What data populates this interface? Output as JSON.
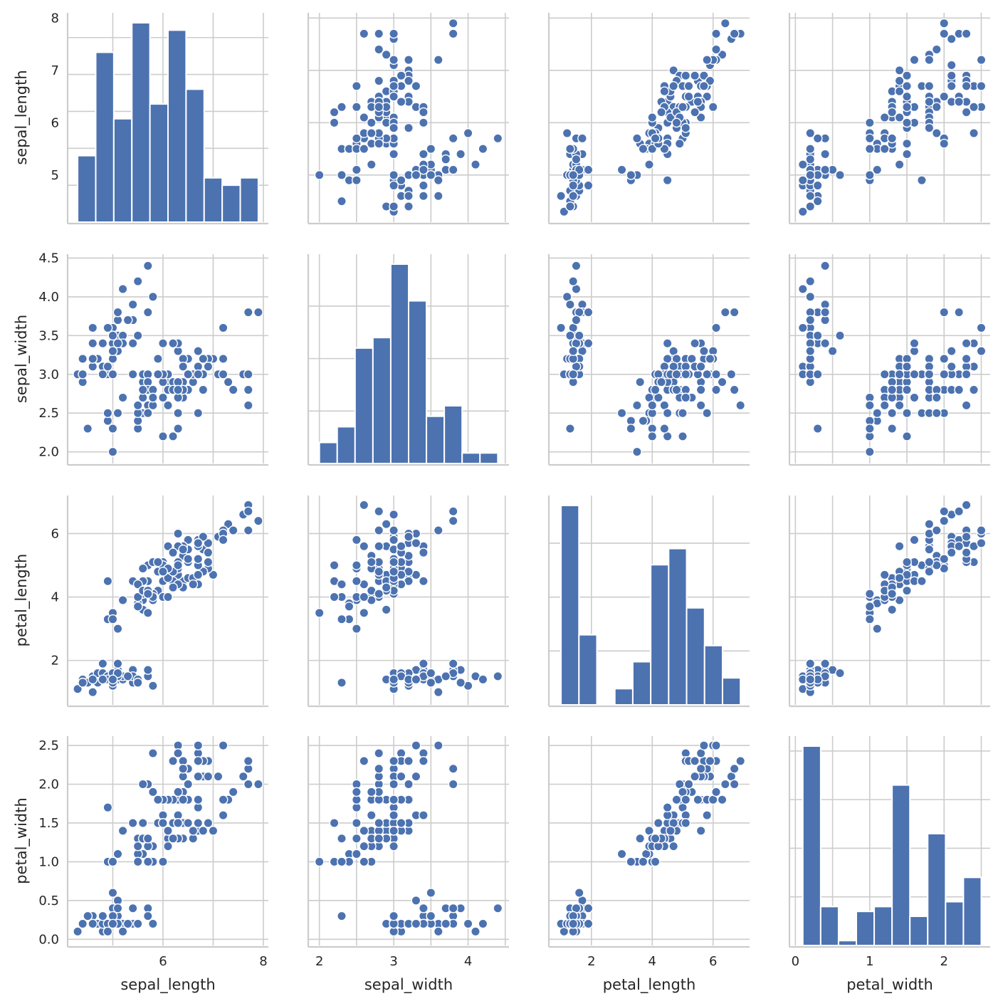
{
  "chart_data": {
    "type": "scatter",
    "title": "",
    "variables": [
      "sepal_length",
      "sepal_width",
      "petal_length",
      "petal_width"
    ],
    "colors": {
      "marker": "#4c72b0",
      "grid": "#cccccc",
      "text": "#262626"
    },
    "axes": {
      "sepal_length": {
        "range": [
          4.1,
          8.1
        ],
        "ticks": [
          5,
          6,
          7,
          8
        ],
        "xticks": [
          6,
          8
        ]
      },
      "sepal_width": {
        "range": [
          1.85,
          4.55
        ],
        "ticks": [
          2.0,
          2.5,
          3.0,
          3.5,
          4.0,
          4.5
        ],
        "tick_labels": [
          "2.0",
          "2.5",
          "3.0",
          "3.5",
          "4.0",
          "4.5"
        ],
        "xticks": [
          2,
          3,
          4
        ]
      },
      "petal_length": {
        "range": [
          0.6,
          7.2
        ],
        "ticks": [
          2,
          4,
          6
        ],
        "xticks": [
          2,
          4,
          6
        ]
      },
      "petal_width": {
        "range": [
          -0.08,
          2.62
        ],
        "ticks": [
          0.0,
          0.5,
          1.0,
          1.5,
          2.0,
          2.5
        ],
        "tick_labels": [
          "0.0",
          "0.5",
          "1.0",
          "1.5",
          "2.0",
          "2.5"
        ],
        "xticks": [
          0,
          1,
          2
        ]
      }
    },
    "histograms": {
      "sepal_length": {
        "bin_edges": [
          4.3,
          4.66,
          5.02,
          5.38,
          5.74,
          6.1,
          6.46,
          6.82,
          7.18,
          7.54,
          7.9
        ],
        "counts": [
          9,
          23,
          14,
          27,
          16,
          26,
          18,
          6,
          5,
          6
        ]
      },
      "sepal_width": {
        "bin_edges": [
          2.0,
          2.24,
          2.48,
          2.72,
          2.96,
          3.2,
          3.44,
          3.68,
          3.92,
          4.16,
          4.4
        ],
        "counts": [
          4,
          7,
          22,
          24,
          38,
          31,
          9,
          11,
          2,
          2
        ]
      },
      "petal_length": {
        "bin_edges": [
          1.0,
          1.59,
          2.18,
          2.77,
          3.36,
          3.95,
          4.54,
          5.13,
          5.72,
          6.31,
          6.9
        ],
        "counts": [
          37,
          13,
          0,
          3,
          8,
          26,
          29,
          18,
          11,
          5
        ]
      },
      "petal_width": {
        "bin_edges": [
          0.1,
          0.34,
          0.58,
          0.82,
          1.06,
          1.3,
          1.54,
          1.78,
          2.02,
          2.26,
          2.5
        ],
        "counts": [
          41,
          8,
          1,
          7,
          8,
          33,
          6,
          23,
          9,
          14
        ]
      }
    },
    "data": [
      [
        5.1,
        3.5,
        1.4,
        0.2
      ],
      [
        4.9,
        3.0,
        1.4,
        0.2
      ],
      [
        4.7,
        3.2,
        1.3,
        0.2
      ],
      [
        4.6,
        3.1,
        1.5,
        0.2
      ],
      [
        5.0,
        3.6,
        1.4,
        0.2
      ],
      [
        5.4,
        3.9,
        1.7,
        0.4
      ],
      [
        4.6,
        3.4,
        1.4,
        0.3
      ],
      [
        5.0,
        3.4,
        1.5,
        0.2
      ],
      [
        4.4,
        2.9,
        1.4,
        0.2
      ],
      [
        4.9,
        3.1,
        1.5,
        0.1
      ],
      [
        5.4,
        3.7,
        1.5,
        0.2
      ],
      [
        4.8,
        3.4,
        1.6,
        0.2
      ],
      [
        4.8,
        3.0,
        1.4,
        0.1
      ],
      [
        4.3,
        3.0,
        1.1,
        0.1
      ],
      [
        5.8,
        4.0,
        1.2,
        0.2
      ],
      [
        5.7,
        4.4,
        1.5,
        0.4
      ],
      [
        5.4,
        3.9,
        1.3,
        0.4
      ],
      [
        5.1,
        3.5,
        1.4,
        0.3
      ],
      [
        5.7,
        3.8,
        1.7,
        0.3
      ],
      [
        5.1,
        3.8,
        1.5,
        0.3
      ],
      [
        5.4,
        3.4,
        1.7,
        0.2
      ],
      [
        5.1,
        3.7,
        1.5,
        0.4
      ],
      [
        4.6,
        3.6,
        1.0,
        0.2
      ],
      [
        5.1,
        3.3,
        1.7,
        0.5
      ],
      [
        4.8,
        3.4,
        1.9,
        0.2
      ],
      [
        5.0,
        3.0,
        1.6,
        0.2
      ],
      [
        5.0,
        3.4,
        1.6,
        0.4
      ],
      [
        5.2,
        3.5,
        1.5,
        0.2
      ],
      [
        5.2,
        3.4,
        1.4,
        0.2
      ],
      [
        4.7,
        3.2,
        1.6,
        0.2
      ],
      [
        4.8,
        3.1,
        1.6,
        0.2
      ],
      [
        5.4,
        3.4,
        1.5,
        0.4
      ],
      [
        5.2,
        4.1,
        1.5,
        0.1
      ],
      [
        5.5,
        4.2,
        1.4,
        0.2
      ],
      [
        4.9,
        3.1,
        1.5,
        0.2
      ],
      [
        5.0,
        3.2,
        1.2,
        0.2
      ],
      [
        5.5,
        3.5,
        1.3,
        0.2
      ],
      [
        4.9,
        3.6,
        1.4,
        0.1
      ],
      [
        4.4,
        3.0,
        1.3,
        0.2
      ],
      [
        5.1,
        3.4,
        1.5,
        0.2
      ],
      [
        5.0,
        3.5,
        1.3,
        0.3
      ],
      [
        4.5,
        2.3,
        1.3,
        0.3
      ],
      [
        4.4,
        3.2,
        1.3,
        0.2
      ],
      [
        5.0,
        3.5,
        1.6,
        0.6
      ],
      [
        5.1,
        3.8,
        1.9,
        0.4
      ],
      [
        4.8,
        3.0,
        1.4,
        0.3
      ],
      [
        5.1,
        3.8,
        1.6,
        0.2
      ],
      [
        4.6,
        3.2,
        1.4,
        0.2
      ],
      [
        5.3,
        3.7,
        1.5,
        0.2
      ],
      [
        5.0,
        3.3,
        1.4,
        0.2
      ],
      [
        7.0,
        3.2,
        4.7,
        1.4
      ],
      [
        6.4,
        3.2,
        4.5,
        1.5
      ],
      [
        6.9,
        3.1,
        4.9,
        1.5
      ],
      [
        5.5,
        2.3,
        4.0,
        1.3
      ],
      [
        6.5,
        2.8,
        4.6,
        1.5
      ],
      [
        5.7,
        2.8,
        4.5,
        1.3
      ],
      [
        6.3,
        3.3,
        4.7,
        1.6
      ],
      [
        4.9,
        2.4,
        3.3,
        1.0
      ],
      [
        6.6,
        2.9,
        4.6,
        1.3
      ],
      [
        5.2,
        2.7,
        3.9,
        1.4
      ],
      [
        5.0,
        2.0,
        3.5,
        1.0
      ],
      [
        5.9,
        3.0,
        4.2,
        1.5
      ],
      [
        6.0,
        2.2,
        4.0,
        1.0
      ],
      [
        6.1,
        2.9,
        4.7,
        1.4
      ],
      [
        5.6,
        2.9,
        3.6,
        1.3
      ],
      [
        6.7,
        3.1,
        4.4,
        1.4
      ],
      [
        5.6,
        3.0,
        4.5,
        1.5
      ],
      [
        5.8,
        2.7,
        4.1,
        1.0
      ],
      [
        6.2,
        2.2,
        4.5,
        1.5
      ],
      [
        5.6,
        2.5,
        3.9,
        1.1
      ],
      [
        5.9,
        3.2,
        4.8,
        1.8
      ],
      [
        6.1,
        2.8,
        4.0,
        1.3
      ],
      [
        6.3,
        2.5,
        4.9,
        1.5
      ],
      [
        6.1,
        2.8,
        4.7,
        1.2
      ],
      [
        6.4,
        2.9,
        4.3,
        1.3
      ],
      [
        6.6,
        3.0,
        4.4,
        1.4
      ],
      [
        6.8,
        2.8,
        4.8,
        1.4
      ],
      [
        6.7,
        3.0,
        5.0,
        1.7
      ],
      [
        6.0,
        2.9,
        4.5,
        1.5
      ],
      [
        5.7,
        2.6,
        3.5,
        1.0
      ],
      [
        5.5,
        2.4,
        3.8,
        1.1
      ],
      [
        5.5,
        2.4,
        3.7,
        1.0
      ],
      [
        5.8,
        2.7,
        3.9,
        1.2
      ],
      [
        6.0,
        2.7,
        5.1,
        1.6
      ],
      [
        5.4,
        3.0,
        4.5,
        1.5
      ],
      [
        6.0,
        3.4,
        4.5,
        1.6
      ],
      [
        6.7,
        3.1,
        4.7,
        1.5
      ],
      [
        6.3,
        2.3,
        4.4,
        1.3
      ],
      [
        5.6,
        3.0,
        4.1,
        1.3
      ],
      [
        5.5,
        2.5,
        4.0,
        1.3
      ],
      [
        5.5,
        2.6,
        4.4,
        1.2
      ],
      [
        6.1,
        3.0,
        4.6,
        1.4
      ],
      [
        5.8,
        2.6,
        4.0,
        1.2
      ],
      [
        5.0,
        2.3,
        3.3,
        1.0
      ],
      [
        5.6,
        2.7,
        4.2,
        1.3
      ],
      [
        5.7,
        3.0,
        4.2,
        1.2
      ],
      [
        5.7,
        2.9,
        4.2,
        1.3
      ],
      [
        6.2,
        2.9,
        4.3,
        1.3
      ],
      [
        5.1,
        2.5,
        3.0,
        1.1
      ],
      [
        5.7,
        2.8,
        4.1,
        1.3
      ],
      [
        6.3,
        3.3,
        6.0,
        2.5
      ],
      [
        5.8,
        2.7,
        5.1,
        1.9
      ],
      [
        7.1,
        3.0,
        5.9,
        2.1
      ],
      [
        6.3,
        2.9,
        5.6,
        1.8
      ],
      [
        6.5,
        3.0,
        5.8,
        2.2
      ],
      [
        7.6,
        3.0,
        6.6,
        2.1
      ],
      [
        4.9,
        2.5,
        4.5,
        1.7
      ],
      [
        7.3,
        2.9,
        6.3,
        1.8
      ],
      [
        6.7,
        2.5,
        5.8,
        1.8
      ],
      [
        7.2,
        3.6,
        6.1,
        2.5
      ],
      [
        6.5,
        3.2,
        5.1,
        2.0
      ],
      [
        6.4,
        2.7,
        5.3,
        1.9
      ],
      [
        6.8,
        3.0,
        5.5,
        2.1
      ],
      [
        5.7,
        2.5,
        5.0,
        2.0
      ],
      [
        5.8,
        2.8,
        5.1,
        2.4
      ],
      [
        6.4,
        3.2,
        5.3,
        2.3
      ],
      [
        6.5,
        3.0,
        5.5,
        1.8
      ],
      [
        7.7,
        3.8,
        6.7,
        2.2
      ],
      [
        7.7,
        2.6,
        6.9,
        2.3
      ],
      [
        6.0,
        2.2,
        5.0,
        1.5
      ],
      [
        6.9,
        3.2,
        5.7,
        2.3
      ],
      [
        5.6,
        2.8,
        4.9,
        2.0
      ],
      [
        7.7,
        2.8,
        6.7,
        2.0
      ],
      [
        6.3,
        2.7,
        4.9,
        1.8
      ],
      [
        6.7,
        3.3,
        5.7,
        2.1
      ],
      [
        7.2,
        3.2,
        6.0,
        1.8
      ],
      [
        6.2,
        2.8,
        4.8,
        1.8
      ],
      [
        6.1,
        3.0,
        4.9,
        1.8
      ],
      [
        6.4,
        2.8,
        5.6,
        2.1
      ],
      [
        7.2,
        3.0,
        5.8,
        1.6
      ],
      [
        7.4,
        2.8,
        6.1,
        1.9
      ],
      [
        7.9,
        3.8,
        6.4,
        2.0
      ],
      [
        6.4,
        2.8,
        5.6,
        2.2
      ],
      [
        6.3,
        2.8,
        5.1,
        1.5
      ],
      [
        6.1,
        2.6,
        5.6,
        1.4
      ],
      [
        7.7,
        3.0,
        6.1,
        2.3
      ],
      [
        6.3,
        3.4,
        5.6,
        2.4
      ],
      [
        6.4,
        3.1,
        5.5,
        1.8
      ],
      [
        6.0,
        3.0,
        4.8,
        1.8
      ],
      [
        6.9,
        3.1,
        5.4,
        2.1
      ],
      [
        6.7,
        3.1,
        5.6,
        2.4
      ],
      [
        6.9,
        3.1,
        5.1,
        2.3
      ],
      [
        5.8,
        2.7,
        5.1,
        1.9
      ],
      [
        6.8,
        3.2,
        5.9,
        2.3
      ],
      [
        6.7,
        3.3,
        5.7,
        2.5
      ],
      [
        6.7,
        3.0,
        5.2,
        2.3
      ],
      [
        6.3,
        2.5,
        5.0,
        1.9
      ],
      [
        6.5,
        3.0,
        5.2,
        2.0
      ],
      [
        6.2,
        3.4,
        5.4,
        2.3
      ],
      [
        5.9,
        3.0,
        5.1,
        1.8
      ]
    ]
  }
}
